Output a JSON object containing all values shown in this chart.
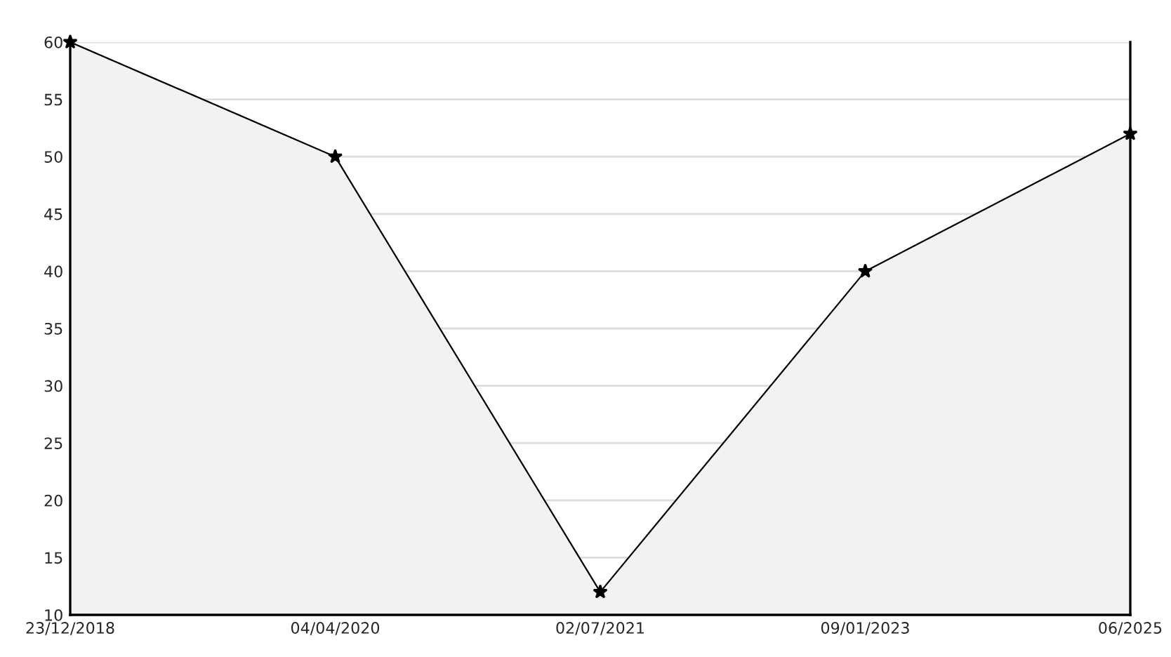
{
  "chart_data": {
    "type": "area",
    "categories": [
      "23/12/2018",
      "04/04/2020",
      "02/07/2021",
      "09/01/2023",
      "06/2025"
    ],
    "series": [
      {
        "color": "#f2f2f2",
        "values": [
          60,
          50,
          12,
          40,
          52
        ]
      }
    ],
    "ylim": [
      10,
      60
    ],
    "yticks": [
      10,
      15,
      20,
      25,
      30,
      35,
      40,
      45,
      50,
      55,
      60
    ],
    "grid": "y",
    "marker": "star",
    "line_style": "solid"
  }
}
